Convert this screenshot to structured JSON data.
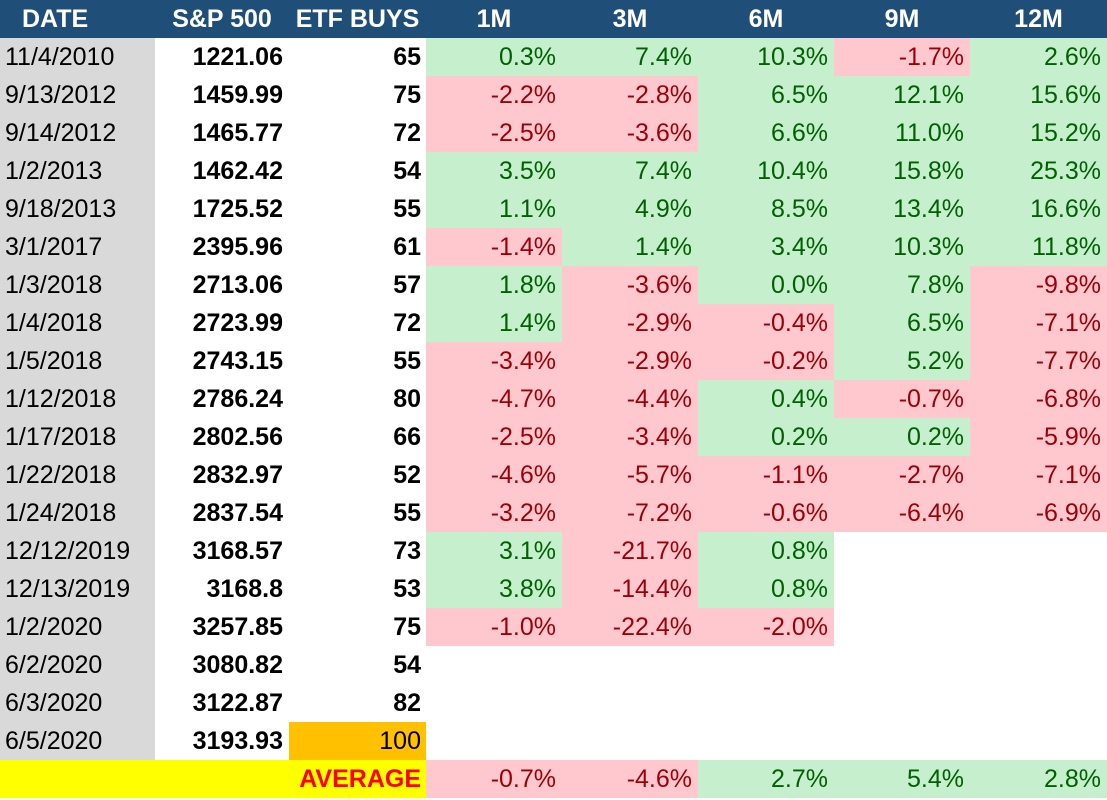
{
  "table": {
    "headers": [
      "DATE",
      "S&P 500",
      "ETF BUYS",
      "1M",
      "3M",
      "6M",
      "9M",
      "12M"
    ],
    "rows": [
      {
        "date": "11/4/2010",
        "sp500": "1221.06",
        "etf_buys": "65",
        "returns": [
          "0.3%",
          "7.4%",
          "10.3%",
          "-1.7%",
          "2.6%"
        ]
      },
      {
        "date": "9/13/2012",
        "sp500": "1459.99",
        "etf_buys": "75",
        "returns": [
          "-2.2%",
          "-2.8%",
          "6.5%",
          "12.1%",
          "15.6%"
        ]
      },
      {
        "date": "9/14/2012",
        "sp500": "1465.77",
        "etf_buys": "72",
        "returns": [
          "-2.5%",
          "-3.6%",
          "6.6%",
          "11.0%",
          "15.2%"
        ]
      },
      {
        "date": "1/2/2013",
        "sp500": "1462.42",
        "etf_buys": "54",
        "returns": [
          "3.5%",
          "7.4%",
          "10.4%",
          "15.8%",
          "25.3%"
        ]
      },
      {
        "date": "9/18/2013",
        "sp500": "1725.52",
        "etf_buys": "55",
        "returns": [
          "1.1%",
          "4.9%",
          "8.5%",
          "13.4%",
          "16.6%"
        ]
      },
      {
        "date": "3/1/2017",
        "sp500": "2395.96",
        "etf_buys": "61",
        "returns": [
          "-1.4%",
          "1.4%",
          "3.4%",
          "10.3%",
          "11.8%"
        ]
      },
      {
        "date": "1/3/2018",
        "sp500": "2713.06",
        "etf_buys": "57",
        "returns": [
          "1.8%",
          "-3.6%",
          "0.0%",
          "7.8%",
          "-9.8%"
        ]
      },
      {
        "date": "1/4/2018",
        "sp500": "2723.99",
        "etf_buys": "72",
        "returns": [
          "1.4%",
          "-2.9%",
          "-0.4%",
          "6.5%",
          "-7.1%"
        ]
      },
      {
        "date": "1/5/2018",
        "sp500": "2743.15",
        "etf_buys": "55",
        "returns": [
          "-3.4%",
          "-2.9%",
          "-0.2%",
          "5.2%",
          "-7.7%"
        ]
      },
      {
        "date": "1/12/2018",
        "sp500": "2786.24",
        "etf_buys": "80",
        "returns": [
          "-4.7%",
          "-4.4%",
          "0.4%",
          "-0.7%",
          "-6.8%"
        ]
      },
      {
        "date": "1/17/2018",
        "sp500": "2802.56",
        "etf_buys": "66",
        "returns": [
          "-2.5%",
          "-3.4%",
          "0.2%",
          "0.2%",
          "-5.9%"
        ]
      },
      {
        "date": "1/22/2018",
        "sp500": "2832.97",
        "etf_buys": "52",
        "returns": [
          "-4.6%",
          "-5.7%",
          "-1.1%",
          "-2.7%",
          "-7.1%"
        ]
      },
      {
        "date": "1/24/2018",
        "sp500": "2837.54",
        "etf_buys": "55",
        "returns": [
          "-3.2%",
          "-7.2%",
          "-0.6%",
          "-6.4%",
          "-6.9%"
        ]
      },
      {
        "date": "12/12/2019",
        "sp500": "3168.57",
        "etf_buys": "73",
        "returns": [
          "3.1%",
          "-21.7%",
          "0.8%",
          "",
          ""
        ]
      },
      {
        "date": "12/13/2019",
        "sp500": "3168.8",
        "etf_buys": "53",
        "returns": [
          "3.8%",
          "-14.4%",
          "0.8%",
          "",
          ""
        ]
      },
      {
        "date": "1/2/2020",
        "sp500": "3257.85",
        "etf_buys": "75",
        "returns": [
          "-1.0%",
          "-22.4%",
          "-2.0%",
          "",
          ""
        ]
      },
      {
        "date": "6/2/2020",
        "sp500": "3080.82",
        "etf_buys": "54",
        "returns": [
          "",
          "",
          "",
          "",
          ""
        ]
      },
      {
        "date": "6/3/2020",
        "sp500": "3122.87",
        "etf_buys": "82",
        "returns": [
          "",
          "",
          "",
          "",
          ""
        ]
      },
      {
        "date": "6/5/2020",
        "sp500": "3193.93",
        "etf_buys": "100",
        "returns": [
          "",
          "",
          "",
          "",
          ""
        ],
        "highlight_etf": true
      }
    ],
    "average": {
      "label": "AVERAGE",
      "returns": [
        "-0.7%",
        "-4.6%",
        "2.7%",
        "5.4%",
        "2.8%"
      ]
    }
  },
  "colors": {
    "header_bg": "#1f4e79",
    "date_col_bg": "#d9d9d9",
    "positive_bg": "#c6efce",
    "positive_text": "#006100",
    "negative_bg": "#ffc7ce",
    "negative_text": "#9c0006",
    "highlight_bg": "#ffc000",
    "average_bg": "#ffff00",
    "average_label": "#ff0000"
  }
}
